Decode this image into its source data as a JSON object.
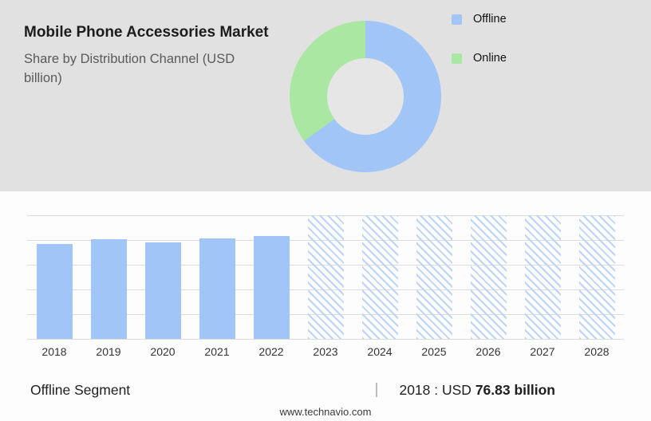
{
  "header": {
    "title": "Mobile Phone Accessories Market",
    "subtitle": "Share by Distribution Channel (USD billion)"
  },
  "colors": {
    "offline_blue": "#a2c5f7",
    "online_green": "#a9e7a3",
    "panel_gray": "#e1e1e1"
  },
  "chart_data": [
    {
      "type": "pie",
      "donut": true,
      "title": "Share by Distribution Channel (USD billion)",
      "labels": [
        "Offline",
        "Online"
      ],
      "values": [
        65,
        35
      ],
      "colors": [
        "#a2c5f7",
        "#a9e7a3"
      ],
      "legend_position": "right"
    },
    {
      "type": "bar",
      "categories": [
        "2018",
        "2019",
        "2020",
        "2021",
        "2022",
        "2023",
        "2024",
        "2025",
        "2026",
        "2027",
        "2028"
      ],
      "values": [
        76.83,
        80.5,
        78,
        81,
        83.5,
        null,
        null,
        null,
        null,
        null,
        null
      ],
      "title": "Offline Segment (USD billion)",
      "xlabel": "",
      "ylabel": "USD billion",
      "ylim": [
        0,
        100
      ],
      "grid": true,
      "gridline_count": 6,
      "note": "2023-2028 are forecast years shown as full-height hatched placeholder bars",
      "bar_color": "#a2c5f7"
    }
  ],
  "annotation": {
    "segment_label": "Offline Segment",
    "separator": "|",
    "year_prefix": "2018 : USD",
    "value": "76.83 billion"
  },
  "footer": {
    "website": "www.technavio.com"
  }
}
